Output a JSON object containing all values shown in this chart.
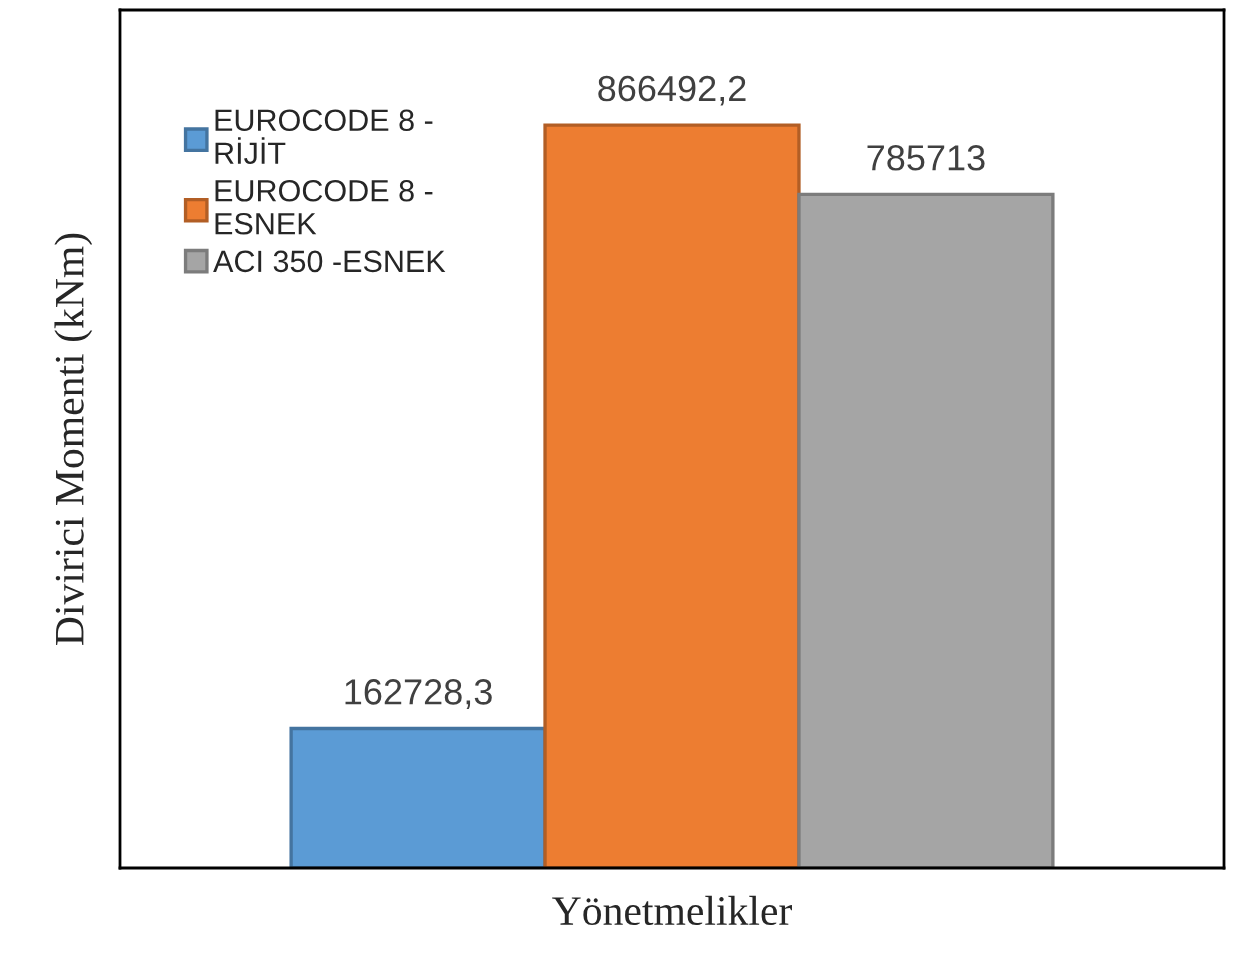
{
  "chart_data": {
    "type": "bar",
    "xlabel": "Yönetmelikler",
    "ylabel": "Divirici Momenti (kNm)",
    "categories": [
      null
    ],
    "series": [
      {
        "name": "EUROCODE 8 -\nRİJİT",
        "color": "#5b9bd5",
        "values": [
          162728.3
        ],
        "value_labels": [
          "162728,3"
        ]
      },
      {
        "name": "EUROCODE 8 -\nESNEK",
        "color": "#ed7d31",
        "values": [
          866492.2
        ],
        "value_labels": [
          "866492,2"
        ]
      },
      {
        "name": "ACI 350 -ESNEK",
        "color": "#a5a5a5",
        "values": [
          785713
        ],
        "value_labels": [
          "785713"
        ]
      }
    ],
    "legend": "top left",
    "grid": false,
    "tick_labels": false
  }
}
